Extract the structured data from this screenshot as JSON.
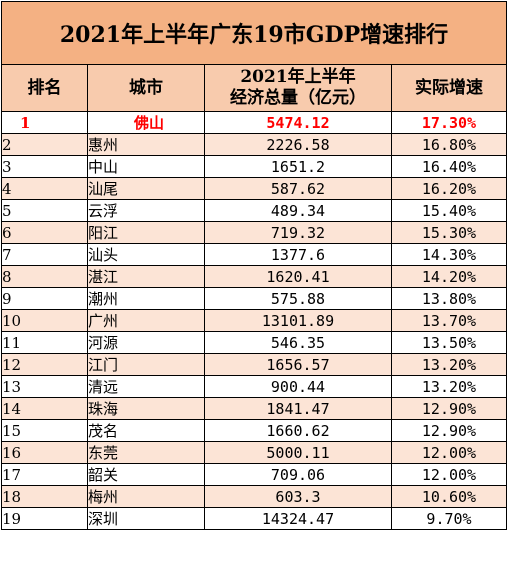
{
  "title": "2021年上半年广东19市GDP增速排行",
  "headers": {
    "rank": "排名",
    "city": "城市",
    "gdp_line1": "2021年上半年",
    "gdp_line2": "经济总量（亿元）",
    "rate": "实际增速"
  },
  "colors": {
    "title_bg": "#f4b183",
    "header_bg": "#f8cbad",
    "stripe_bg": "#fce4d6",
    "highlight_text": "#ff0000"
  },
  "rows": [
    {
      "rank": "1",
      "city": "佛山",
      "gdp": "5474.12",
      "rate": "17.30%"
    },
    {
      "rank": "2",
      "city": "惠州",
      "gdp": "2226.58",
      "rate": "16.80%"
    },
    {
      "rank": "3",
      "city": "中山",
      "gdp": "1651.2",
      "rate": "16.40%"
    },
    {
      "rank": "4",
      "city": "汕尾",
      "gdp": "587.62",
      "rate": "16.20%"
    },
    {
      "rank": "5",
      "city": "云浮",
      "gdp": "489.34",
      "rate": "15.40%"
    },
    {
      "rank": "6",
      "city": "阳江",
      "gdp": "719.32",
      "rate": "15.30%"
    },
    {
      "rank": "7",
      "city": "汕头",
      "gdp": "1377.6",
      "rate": "14.30%"
    },
    {
      "rank": "8",
      "city": "湛江",
      "gdp": "1620.41",
      "rate": "14.20%"
    },
    {
      "rank": "9",
      "city": "潮州",
      "gdp": "575.88",
      "rate": "13.80%"
    },
    {
      "rank": "10",
      "city": "广州",
      "gdp": "13101.89",
      "rate": "13.70%"
    },
    {
      "rank": "11",
      "city": "河源",
      "gdp": "546.35",
      "rate": "13.50%"
    },
    {
      "rank": "12",
      "city": "江门",
      "gdp": "1656.57",
      "rate": "13.20%"
    },
    {
      "rank": "13",
      "city": "清远",
      "gdp": "900.44",
      "rate": "13.20%"
    },
    {
      "rank": "14",
      "city": "珠海",
      "gdp": "1841.47",
      "rate": "12.90%"
    },
    {
      "rank": "15",
      "city": "茂名",
      "gdp": "1660.62",
      "rate": "12.90%"
    },
    {
      "rank": "16",
      "city": "东莞",
      "gdp": "5000.11",
      "rate": "12.00%"
    },
    {
      "rank": "17",
      "city": "韶关",
      "gdp": "709.06",
      "rate": "12.00%"
    },
    {
      "rank": "18",
      "city": "梅州",
      "gdp": "603.3",
      "rate": "10.60%"
    },
    {
      "rank": "19",
      "city": "深圳",
      "gdp": "14324.47",
      "rate": "9.70%"
    }
  ]
}
